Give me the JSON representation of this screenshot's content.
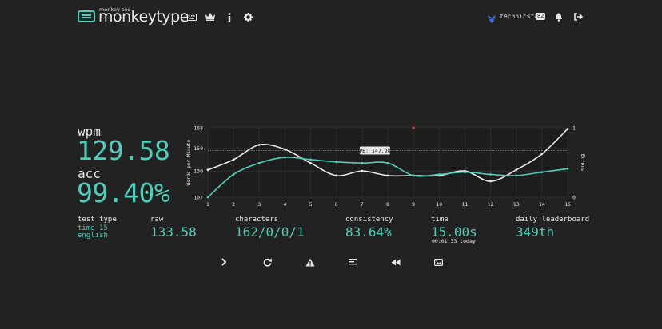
{
  "header": {
    "logo_sub": "monkey see",
    "logo_text": "monkeytype",
    "nav_icons": [
      "keyboard-icon",
      "crown-icon",
      "info-icon",
      "gear-icon"
    ],
    "username": "technicstat",
    "level": "82",
    "right_icons": [
      "bell-icon",
      "sign-out-icon"
    ]
  },
  "result": {
    "wpm_label": "wpm",
    "wpm": "129.58",
    "acc_label": "acc",
    "acc": "99.40%",
    "test_type_label": "test type",
    "test_type_line1": "time 15",
    "test_type_line2": "english",
    "raw_label": "raw",
    "raw": "133.58",
    "characters_label": "characters",
    "characters": "162/0/0/1",
    "consistency_label": "consistency",
    "consistency": "83.64%",
    "time_label": "time",
    "time": "15.00s",
    "time_sub": "00:01:33 today",
    "leaderboard_label": "daily leaderboard",
    "leaderboard": "349th"
  },
  "chart_data": {
    "type": "line",
    "x": [
      1,
      2,
      3,
      4,
      5,
      6,
      7,
      8,
      9,
      10,
      11,
      12,
      13,
      14,
      15
    ],
    "ylabel": "Words per Minute",
    "y2label": "Errors",
    "yticks": [
      107,
      130,
      150,
      168
    ],
    "y2ticks": [
      0,
      1
    ],
    "ylim": [
      107,
      168
    ],
    "y2lim": [
      0,
      1
    ],
    "pb_line": {
      "value": 147.98,
      "label": "PB: 147.98"
    },
    "series": [
      {
        "name": "raw",
        "color": "#e8e8e8",
        "values": [
          131,
          140,
          153,
          149,
          137,
          126,
          130,
          126,
          126,
          126,
          130,
          121,
          131,
          145,
          167
        ]
      },
      {
        "name": "wpm",
        "color": "#4fcdb9",
        "values": [
          107,
          127,
          137,
          142,
          140,
          138,
          137,
          137,
          126,
          127,
          129,
          127,
          126,
          129,
          132
        ]
      }
    ],
    "errors": [
      {
        "x": 9,
        "value": 1
      }
    ],
    "grid": true,
    "colors": {
      "raw": "#e8e8e8",
      "wpm": "#4fcdb9",
      "error": "#e45c5c",
      "pb": "#aaaaaa"
    }
  },
  "bottom_icons": [
    "chevron-right-icon",
    "refresh-icon",
    "warning-icon",
    "align-left-icon",
    "rewind-icon",
    "image-icon"
  ]
}
